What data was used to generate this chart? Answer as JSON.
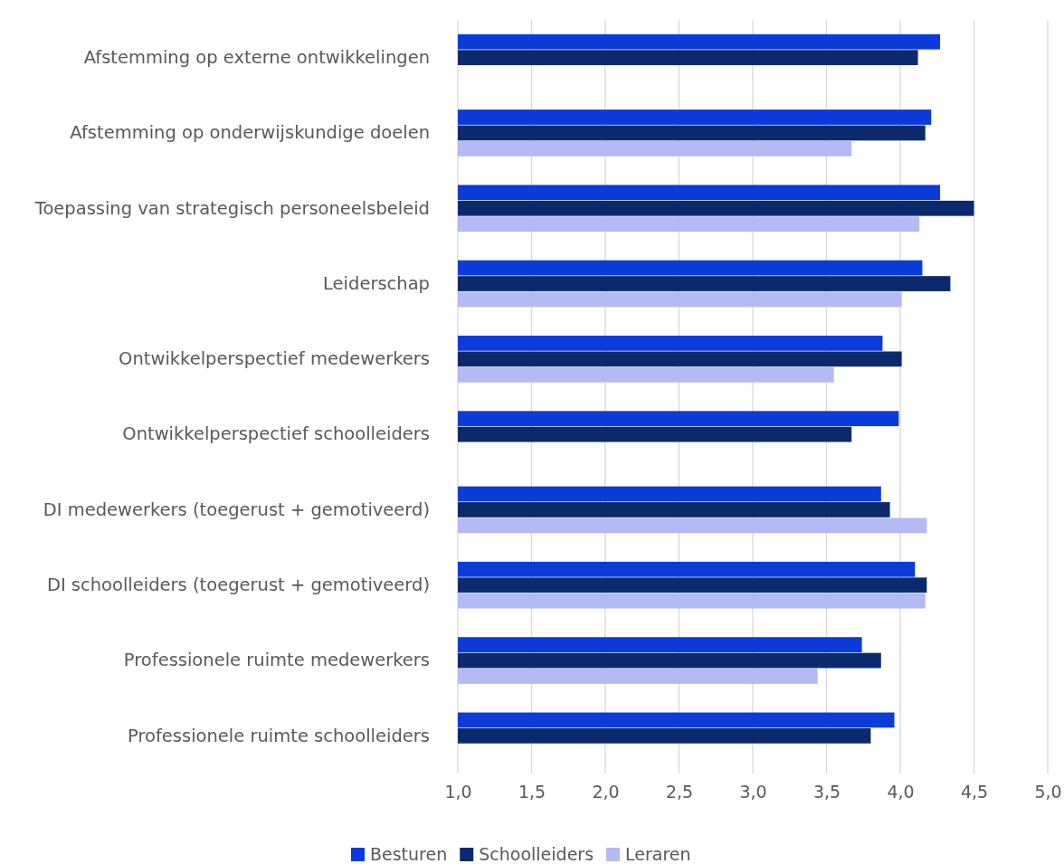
{
  "chart_data": {
    "type": "bar",
    "orientation": "horizontal",
    "categories": [
      "Afstemming op externe ontwikkelingen",
      "Afstemming op onderwijskundige doelen",
      "Toepassing van strategisch personeelsbeleid",
      "Leiderschap",
      "Ontwikkelperspectief medewerkers",
      "Ontwikkelperspectief schoolleiders",
      "DI medewerkers (toegerust + gemotiveerd)",
      "DI schoolleiders (toegerust + gemotiveerd)",
      "Professionele ruimte medewerkers",
      "Professionele ruimte schoolleiders"
    ],
    "series": [
      {
        "name": "Besturen",
        "color": "#0b3bd8",
        "values": [
          4.27,
          4.21,
          4.27,
          4.15,
          3.88,
          3.99,
          3.87,
          4.1,
          3.74,
          3.96
        ]
      },
      {
        "name": "Schoolleiders",
        "color": "#0b2a6e",
        "values": [
          4.12,
          4.17,
          4.5,
          4.34,
          4.01,
          3.67,
          3.93,
          4.18,
          3.87,
          3.8
        ]
      },
      {
        "name": "Leraren",
        "color": "#b4baf3",
        "values": [
          null,
          3.67,
          4.13,
          4.01,
          3.55,
          null,
          4.18,
          4.17,
          3.44,
          null
        ]
      }
    ],
    "xlim": [
      1,
      5
    ],
    "xticks": [
      {
        "value": 1,
        "label": "1,0"
      },
      {
        "value": 1.5,
        "label": "1,5"
      },
      {
        "value": 2,
        "label": "2,0"
      },
      {
        "value": 2.5,
        "label": "2,5"
      },
      {
        "value": 3,
        "label": "3,0"
      },
      {
        "value": 3.5,
        "label": "3,5"
      },
      {
        "value": 4,
        "label": "4,0"
      },
      {
        "value": 4.5,
        "label": "4,5"
      },
      {
        "value": 5,
        "label": "5,0"
      }
    ],
    "grid": "x",
    "legend": "bottom"
  }
}
